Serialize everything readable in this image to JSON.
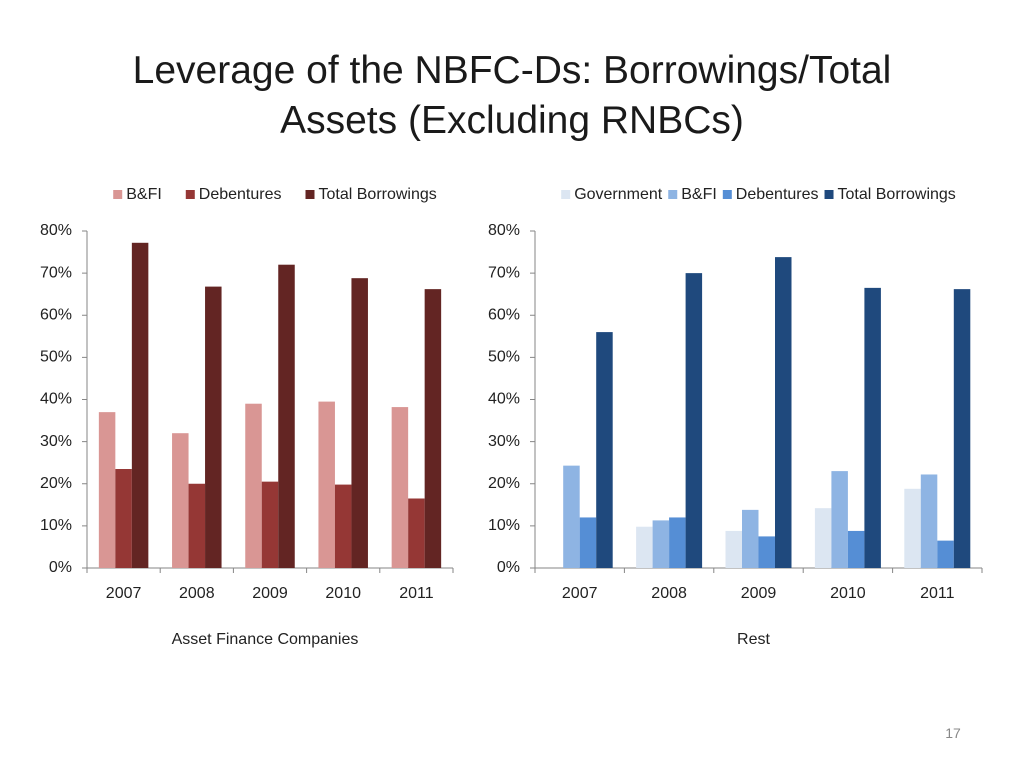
{
  "title": "Leverage of the NBFC-Ds: Borrowings/Total Assets (Excluding RNBCs)",
  "page_number": "17",
  "chart_data": [
    {
      "type": "bar",
      "x_label": "Asset Finance Companies",
      "categories": [
        "2007",
        "2008",
        "2009",
        "2010",
        "2011"
      ],
      "series": [
        {
          "name": "B&FI",
          "color": "#d99694",
          "values": [
            37,
            32,
            39,
            39.5,
            38.2
          ]
        },
        {
          "name": "Debentures",
          "color": "#953735",
          "values": [
            23.5,
            20,
            20.5,
            19.8,
            16.5
          ]
        },
        {
          "name": "Total Borrowings",
          "color": "#632523",
          "values": [
            77.2,
            66.8,
            72,
            68.8,
            66.2
          ]
        }
      ],
      "ylim": [
        0,
        80
      ],
      "yticks": [
        {
          "value": 0,
          "label": "0%"
        },
        {
          "value": 10,
          "label": "10%"
        },
        {
          "value": 20,
          "label": "20%"
        },
        {
          "value": 30,
          "label": "30%"
        },
        {
          "value": 40,
          "label": "40%"
        },
        {
          "value": 50,
          "label": "50%"
        },
        {
          "value": 60,
          "label": "60%"
        },
        {
          "value": 70,
          "label": "70%"
        },
        {
          "value": 80,
          "label": "80%"
        }
      ],
      "legend": "top"
    },
    {
      "type": "bar",
      "x_label": "Rest",
      "categories": [
        "2007",
        "2008",
        "2009",
        "2010",
        "2011"
      ],
      "series": [
        {
          "name": "Government",
          "color": "#dce6f2",
          "values": [
            0,
            9.8,
            8.8,
            14.2,
            18.8
          ]
        },
        {
          "name": "B&FI",
          "color": "#8eb4e3",
          "values": [
            24.3,
            11.3,
            13.8,
            23,
            22.2
          ]
        },
        {
          "name": "Debentures",
          "color": "#558ed5",
          "values": [
            12,
            12,
            7.5,
            8.8,
            6.5
          ]
        },
        {
          "name": "Total Borrowings",
          "color": "#1f497d",
          "values": [
            56,
            70,
            73.8,
            66.5,
            66.2
          ]
        }
      ],
      "ylim": [
        0,
        80
      ],
      "yticks": [
        {
          "value": 0,
          "label": "0%"
        },
        {
          "value": 10,
          "label": "10%"
        },
        {
          "value": 20,
          "label": "20%"
        },
        {
          "value": 30,
          "label": "30%"
        },
        {
          "value": 40,
          "label": "40%"
        },
        {
          "value": 50,
          "label": "50%"
        },
        {
          "value": 60,
          "label": "60%"
        },
        {
          "value": 70,
          "label": "70%"
        },
        {
          "value": 80,
          "label": "80%"
        }
      ],
      "legend": "top"
    }
  ]
}
